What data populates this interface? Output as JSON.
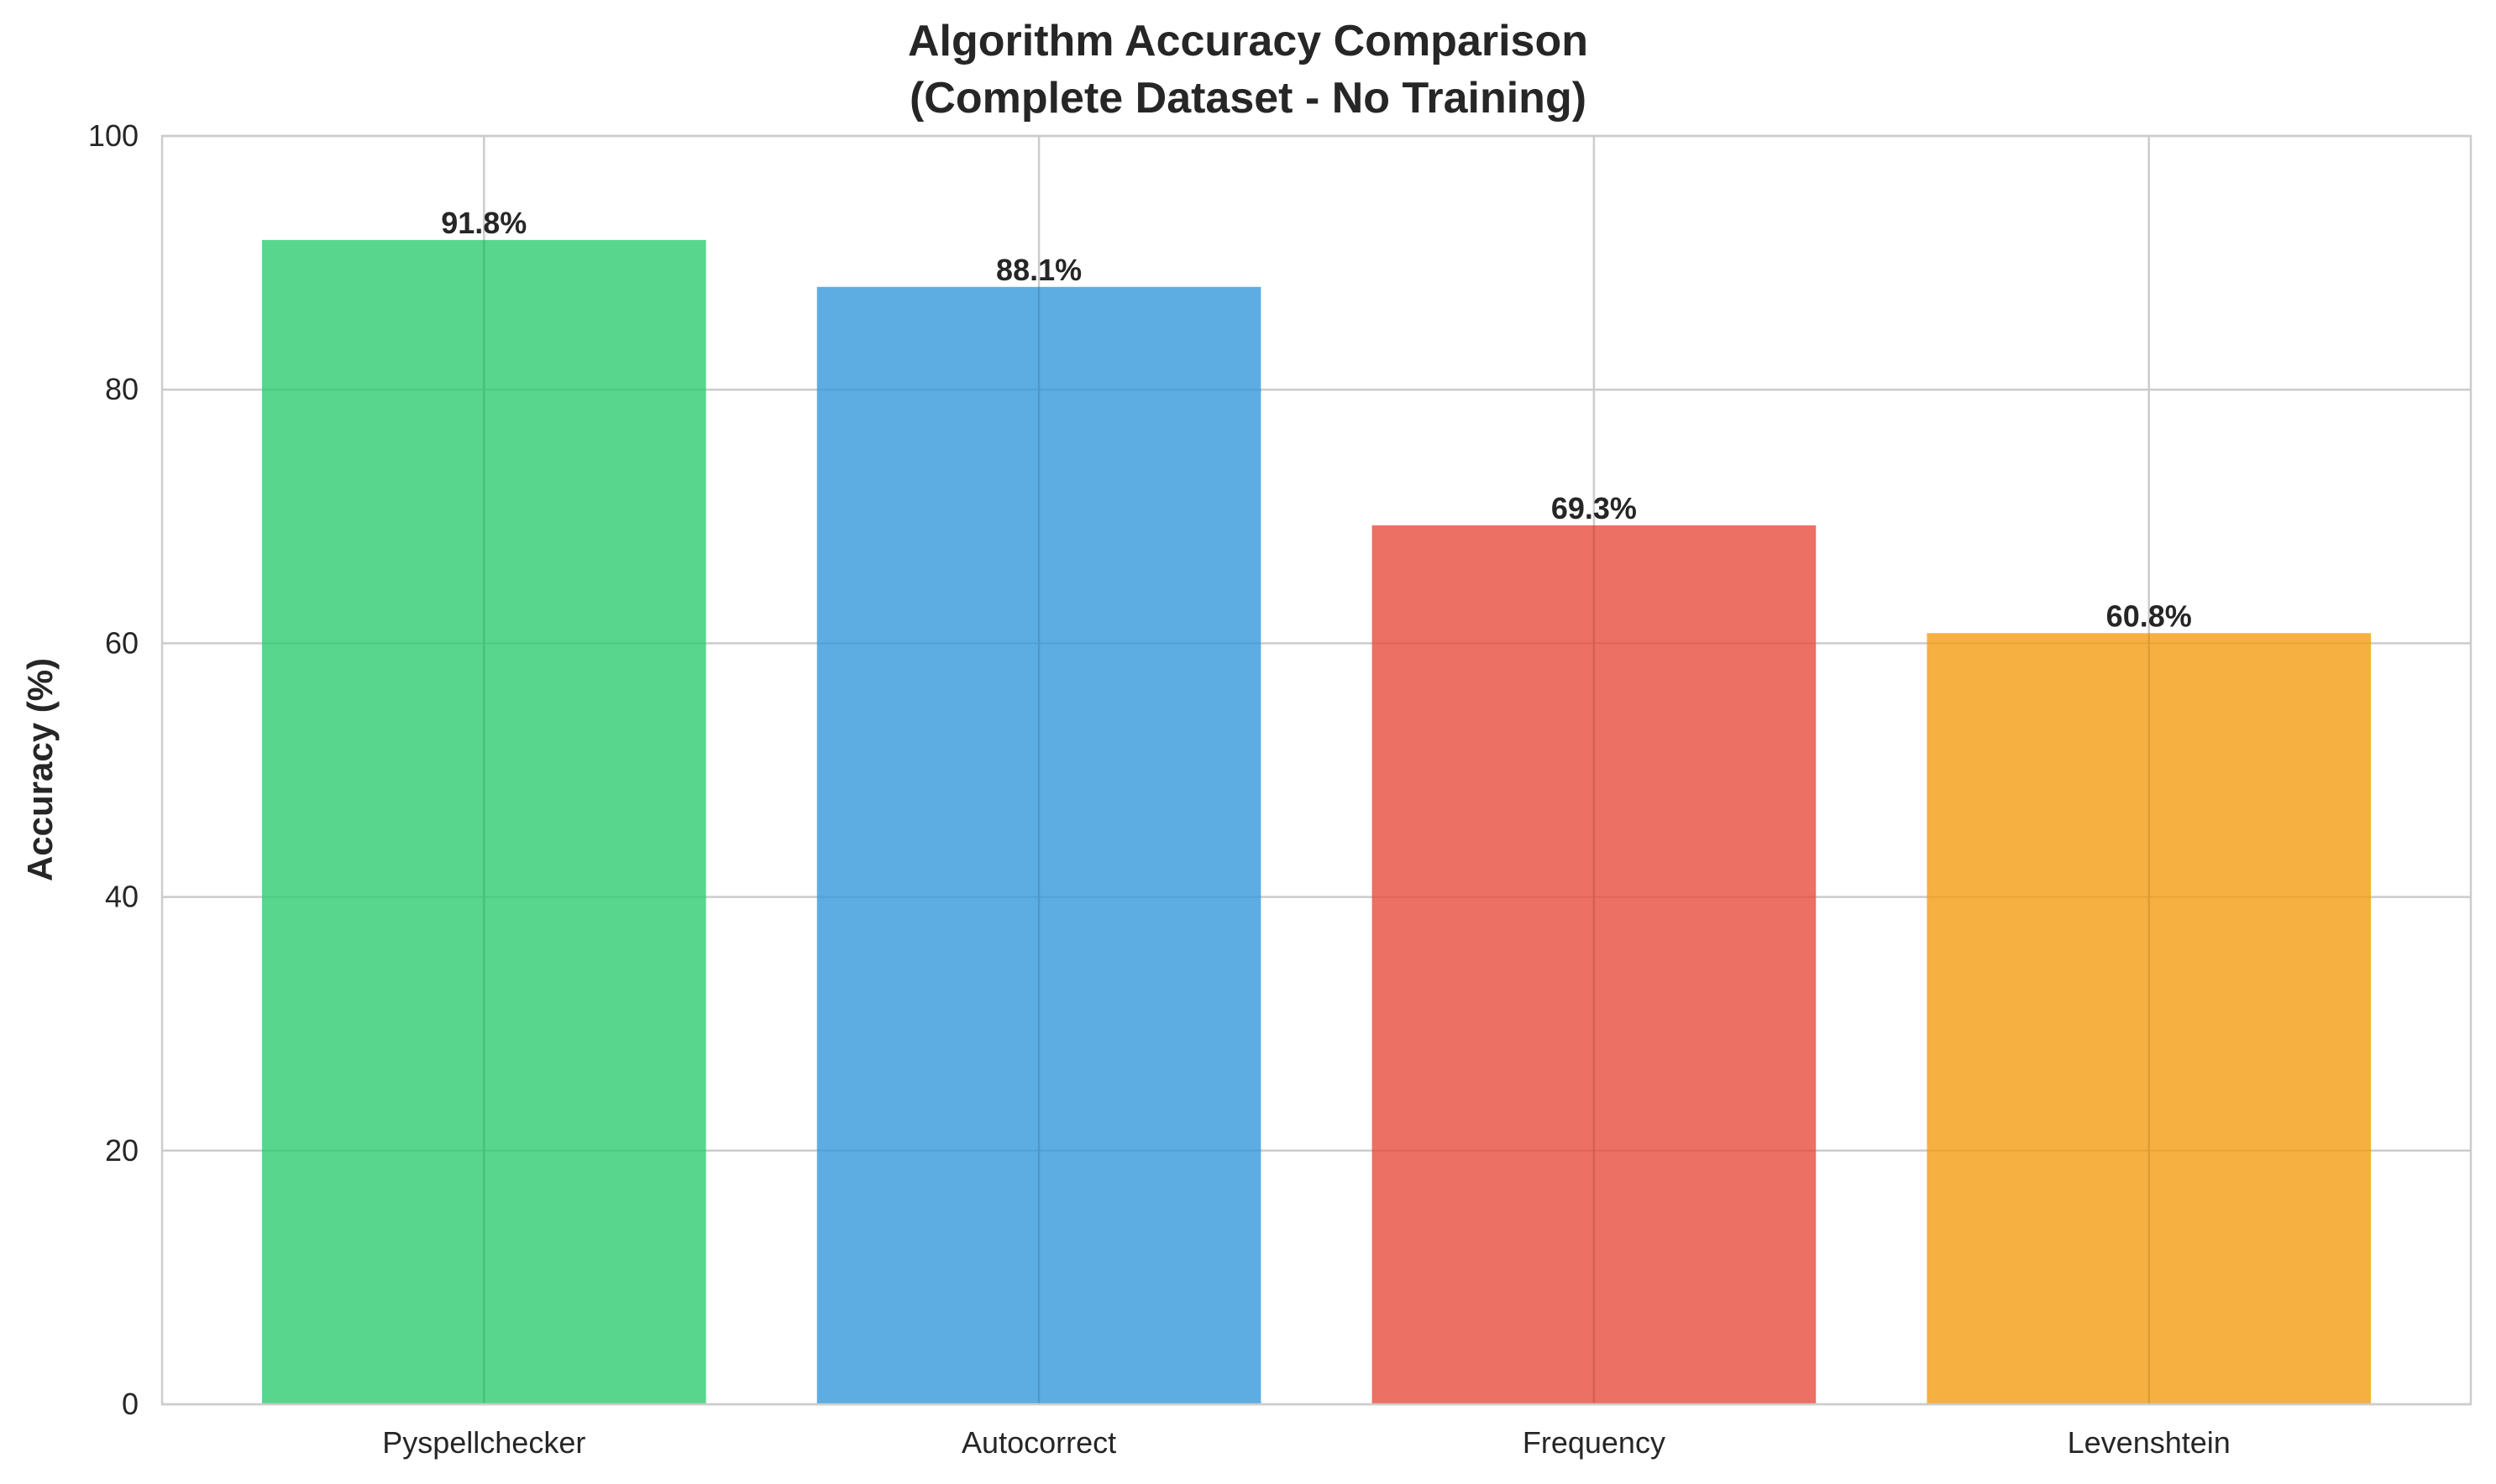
{
  "chart_data": {
    "type": "bar",
    "title": [
      "Algorithm Accuracy Comparison",
      "(Complete Dataset - No Training)"
    ],
    "xlabel": "",
    "ylabel": "Accuracy (%)",
    "ylim": [
      0,
      100
    ],
    "yticks": [
      0,
      20,
      40,
      60,
      80,
      100
    ],
    "grid": true,
    "categories": [
      "Pyspellchecker",
      "Autocorrect",
      "Frequency",
      "Levenshtein"
    ],
    "values": [
      91.8,
      88.1,
      69.3,
      60.8
    ],
    "value_labels": [
      "91.8%",
      "88.1%",
      "69.3%",
      "60.8%"
    ],
    "colors": [
      "#2ecc71",
      "#3498db",
      "#e74c3c",
      "#f39c12"
    ]
  }
}
